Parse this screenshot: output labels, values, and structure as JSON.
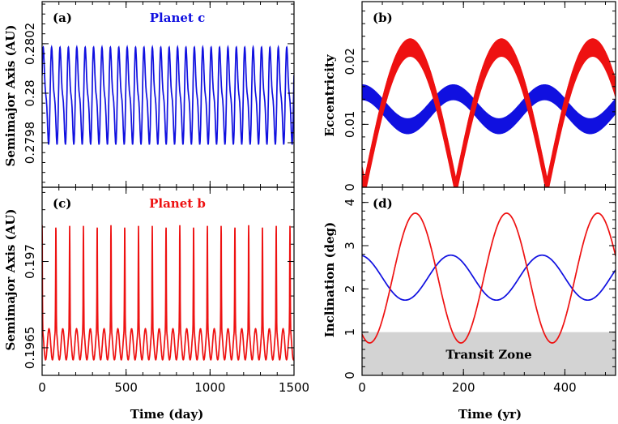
{
  "colors": {
    "planet_c": "#1010e0",
    "planet_b": "#ee1111",
    "transit_zone": "#d3d3d3",
    "axes": "#000000"
  },
  "chart_data": [
    {
      "id": "a",
      "type": "line",
      "panel_label": "(a)",
      "title": "Planet c",
      "title_color": "#1010e0",
      "xlabel": "",
      "ylabel": "Semimajor Axis (AU)",
      "xlim": [
        0,
        1500
      ],
      "ylim": [
        0.27962,
        0.28037
      ],
      "xticks": [
        0,
        500,
        1000,
        1500
      ],
      "yticks": [
        0.2798,
        0.28,
        0.2802
      ],
      "ytick_labels": [
        "0.2798",
        "0.28",
        "0.2802"
      ],
      "series": [
        {
          "color": "#1010e0",
          "model": "double_sine",
          "mean": 0.27999,
          "amp1": 0.000165,
          "period1": 50,
          "amp2": 6e-05,
          "period2": 25,
          "phase": 0.3
        }
      ]
    },
    {
      "id": "b",
      "type": "line",
      "panel_label": "(b)",
      "title": "",
      "xlabel": "",
      "ylabel": "Eccentricity",
      "xlim": [
        0,
        500
      ],
      "ylim": [
        0,
        0.0295
      ],
      "xticks": [
        0,
        200,
        400
      ],
      "yticks": [
        0,
        0.01,
        0.02
      ],
      "ytick_labels": [
        "0",
        "0.01",
        "0.02"
      ],
      "series": [
        {
          "color": "#1010e0",
          "model": "band_sine",
          "mean": 0.0124,
          "amp": 0.0027,
          "period": 180,
          "phase_deg": 90,
          "band_half": 0.0012
        },
        {
          "color": "#ee1111",
          "model": "band_abs_sine",
          "max": 0.0222,
          "period": 360,
          "zero_at": 185,
          "band_half": 0.0014
        }
      ]
    },
    {
      "id": "c",
      "type": "line",
      "panel_label": "(c)",
      "title": "Planet b",
      "title_color": "#ee1111",
      "xlabel": "Time (day)",
      "ylabel": "Semimajor Axis (AU)",
      "xlim": [
        0,
        1500
      ],
      "ylim": [
        0.19634,
        0.19743
      ],
      "xticks": [
        0,
        500,
        1000,
        1500
      ],
      "xtick_labels": [
        "0",
        "500",
        "1000",
        "1500"
      ],
      "yticks": [
        0.1965,
        0.197
      ],
      "ytick_labels": [
        "0.1965",
        "0.197"
      ],
      "series": [
        {
          "color": "#ee1111",
          "model": "spiky",
          "base": 0.19652,
          "amp": 9e-05,
          "period": 41,
          "spike": 0.0006,
          "spike_period": 82
        }
      ]
    },
    {
      "id": "d",
      "type": "line",
      "panel_label": "(d)",
      "title": "",
      "xlabel": "Time (yr)",
      "ylabel": "Inclination (deg)",
      "xlim": [
        0,
        500
      ],
      "ylim": [
        0,
        4.35
      ],
      "xticks": [
        0,
        200,
        400
      ],
      "xtick_labels": [
        "0",
        "200",
        "400"
      ],
      "yticks": [
        0,
        1,
        2,
        3,
        4
      ],
      "ytick_labels": [
        "0",
        "1",
        "2",
        "3",
        "4"
      ],
      "shaded_region": {
        "label": "Transit Zone",
        "y": [
          0,
          1
        ]
      },
      "series": [
        {
          "color": "#1010e0",
          "model": "sine",
          "mean": 2.26,
          "amp": 0.52,
          "period": 180,
          "phase_deg": 100
        },
        {
          "color": "#ee1111",
          "model": "sine",
          "mean": 2.25,
          "amp": 1.5,
          "period": 180,
          "phase_deg": 240
        }
      ]
    }
  ]
}
